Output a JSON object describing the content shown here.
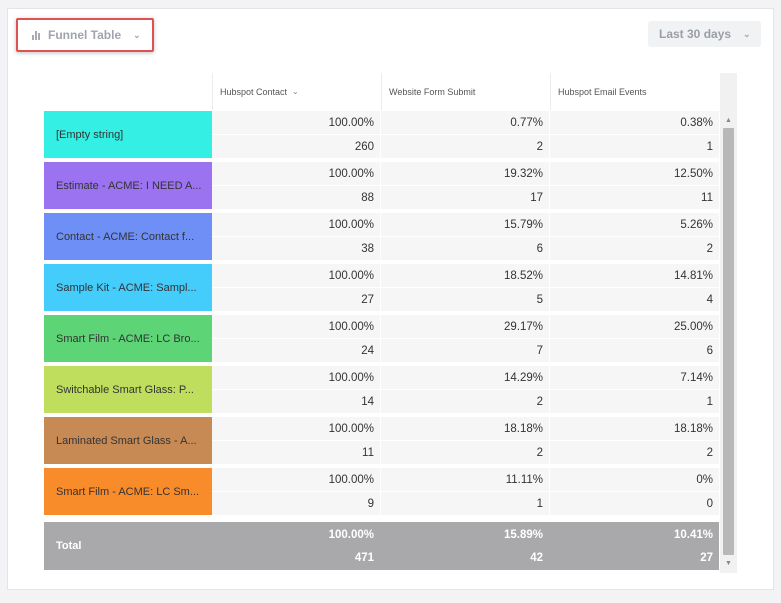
{
  "toolbar": {
    "chart_type_label": "Funnel Table",
    "date_range_label": "Last 30 days"
  },
  "columns": [
    {
      "label": "Hubspot Contact",
      "sortable": true
    },
    {
      "label": "Website Form Submit"
    },
    {
      "label": "Hubspot Email Events"
    }
  ],
  "rows": [
    {
      "label": "[Empty string]",
      "color": "#33efe4",
      "pct": [
        "100.00%",
        "0.77%",
        "0.38%"
      ],
      "count": [
        "260",
        "2",
        "1"
      ]
    },
    {
      "label": "Estimate - ACME: I NEED A...",
      "color": "#9b73f0",
      "pct": [
        "100.00%",
        "19.32%",
        "12.50%"
      ],
      "count": [
        "88",
        "17",
        "11"
      ]
    },
    {
      "label": "Contact - ACME: Contact f...",
      "color": "#6e8ff5",
      "pct": [
        "100.00%",
        "15.79%",
        "5.26%"
      ],
      "count": [
        "38",
        "6",
        "2"
      ]
    },
    {
      "label": "Sample Kit - ACME: Sampl...",
      "color": "#44ccfb",
      "pct": [
        "100.00%",
        "18.52%",
        "14.81%"
      ],
      "count": [
        "27",
        "5",
        "4"
      ]
    },
    {
      "label": "Smart Film - ACME: LC Bro...",
      "color": "#5dd476",
      "pct": [
        "100.00%",
        "29.17%",
        "25.00%"
      ],
      "count": [
        "24",
        "7",
        "6"
      ]
    },
    {
      "label": "Switchable Smart Glass: P...",
      "color": "#bfde5d",
      "pct": [
        "100.00%",
        "14.29%",
        "7.14%"
      ],
      "count": [
        "14",
        "2",
        "1"
      ]
    },
    {
      "label": "Laminated Smart Glass - A...",
      "color": "#c88a55",
      "pct": [
        "100.00%",
        "18.18%",
        "18.18%"
      ],
      "count": [
        "11",
        "2",
        "2"
      ]
    },
    {
      "label": "Smart Film - ACME: LC Sm...",
      "color": "#f98c2a",
      "pct": [
        "100.00%",
        "11.11%",
        "0%"
      ],
      "count": [
        "9",
        "1",
        "0"
      ]
    }
  ],
  "total": {
    "label": "Total",
    "pct": [
      "100.00%",
      "15.89%",
      "10.41%"
    ],
    "count": [
      "471",
      "42",
      "27"
    ]
  }
}
